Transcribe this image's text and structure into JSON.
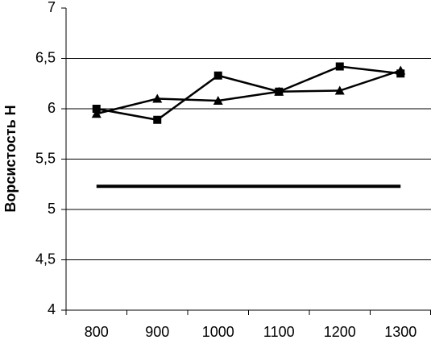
{
  "chart_data": {
    "type": "line",
    "y_label": "Ворсистость Н",
    "categories": [
      "800",
      "900",
      "1000",
      "1100",
      "1200",
      "1300"
    ],
    "series": [
      {
        "color": "#000000",
        "marker": "square",
        "values": [
          6.0,
          5.89,
          6.33,
          6.17,
          6.42,
          6.35
        ]
      },
      {
        "color": "#000000",
        "marker": "triangle",
        "values": [
          5.95,
          6.1,
          6.08,
          6.17,
          6.18,
          6.38
        ]
      },
      {
        "color": "#000000",
        "marker": "none",
        "line_width": 4,
        "values": [
          5.23,
          5.23,
          5.23,
          5.23,
          5.23,
          5.23
        ]
      }
    ],
    "ylim": [
      4,
      7
    ],
    "yticks": [
      4,
      {
        "value": 4.5,
        "label": "4,5"
      },
      5,
      {
        "value": 5.5,
        "label": "5,5"
      },
      6,
      {
        "value": 6.5,
        "label": "6,5"
      },
      7
    ],
    "grid": true
  }
}
